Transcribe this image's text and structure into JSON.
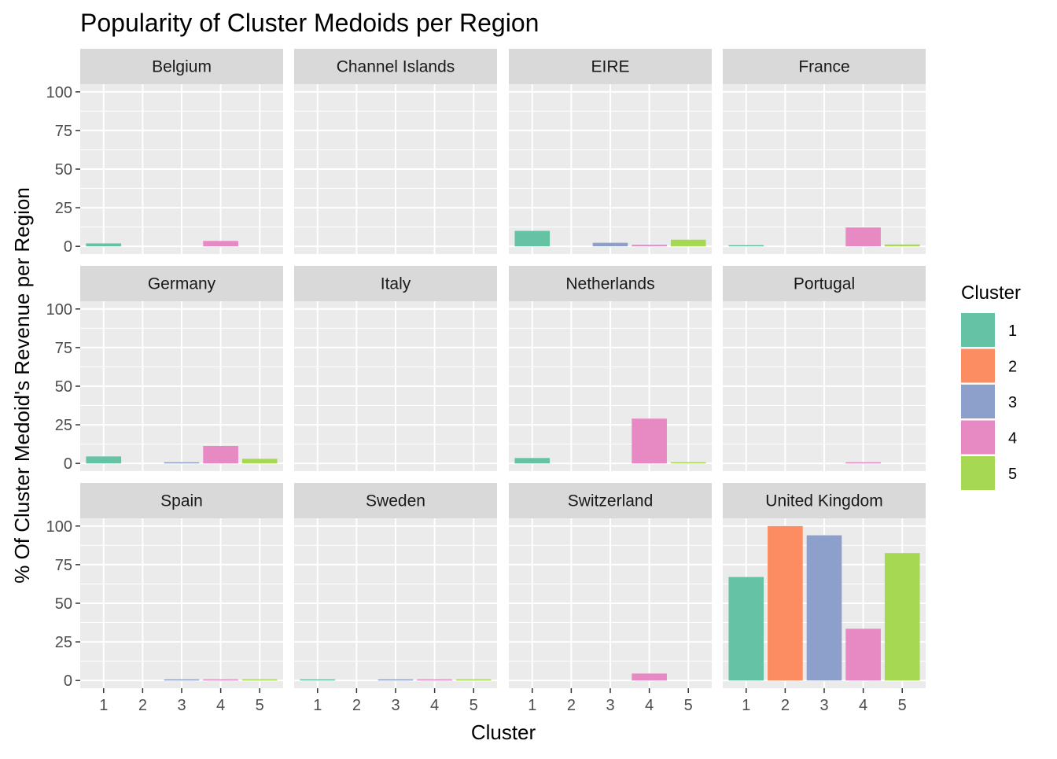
{
  "chart_data": {
    "type": "bar",
    "title": "Popularity of Cluster Medoids per Region",
    "xlabel": "Cluster",
    "ylabel": "% Of Cluster Medoid's Revenue per Region",
    "categories": [
      "1",
      "2",
      "3",
      "4",
      "5"
    ],
    "y_ticks": [
      "0",
      "25",
      "50",
      "75",
      "100"
    ],
    "ylim": [
      0,
      100
    ],
    "grid": true,
    "legend": {
      "title": "Cluster",
      "position": "right",
      "entries": [
        "1",
        "2",
        "3",
        "4",
        "5"
      ]
    },
    "colors": [
      "#66c2a5",
      "#fc8d62",
      "#8da0cb",
      "#e78ac3",
      "#a6d854"
    ],
    "facets": [
      {
        "name": "Belgium",
        "values": [
          1.9,
          0,
          0,
          3.5,
          0
        ]
      },
      {
        "name": "Channel Islands",
        "values": [
          0,
          0,
          0,
          0,
          0
        ]
      },
      {
        "name": "EIRE",
        "values": [
          10,
          0,
          2.3,
          1,
          4.3
        ]
      },
      {
        "name": "France",
        "values": [
          0.5,
          0,
          0,
          12.2,
          1.2
        ]
      },
      {
        "name": "Germany",
        "values": [
          4.5,
          0,
          0.5,
          11.3,
          3
        ]
      },
      {
        "name": "Italy",
        "values": [
          0,
          0,
          0,
          0,
          0
        ]
      },
      {
        "name": "Netherlands",
        "values": [
          3.5,
          0,
          0,
          29,
          0.5
        ]
      },
      {
        "name": "Portugal",
        "values": [
          0,
          0,
          0,
          0.6,
          0
        ]
      },
      {
        "name": "Spain",
        "values": [
          0,
          0,
          0.4,
          0.4,
          0.4
        ]
      },
      {
        "name": "Sweden",
        "values": [
          0.4,
          0,
          0.4,
          0.4,
          0.4
        ]
      },
      {
        "name": "Switzerland",
        "values": [
          0,
          0,
          0,
          4.5,
          0
        ]
      },
      {
        "name": "United Kingdom",
        "values": [
          67,
          100,
          94,
          33.5,
          82.5
        ]
      }
    ]
  }
}
